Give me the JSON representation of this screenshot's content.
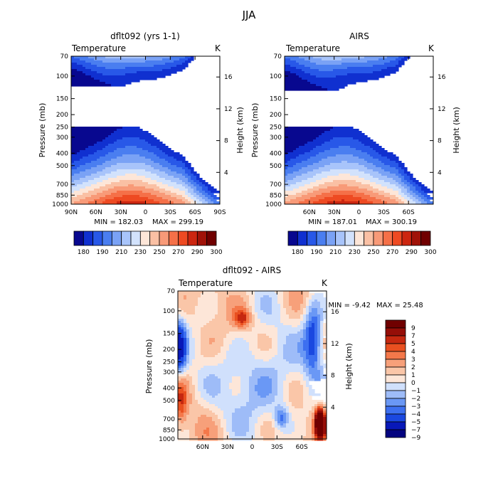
{
  "figure": {
    "title": "JJA",
    "variable": "Temperature",
    "units": "K",
    "ylabel_left": "Pressure (mb)",
    "ylabel_right": "Height (km)"
  },
  "colors": {
    "temperature_scale": [
      "#08088f",
      "#1030d0",
      "#2858e8",
      "#4a7ef0",
      "#7aa2f5",
      "#a8c4fa",
      "#d2e2fc",
      "#fde6d8",
      "#fac0a4",
      "#f89a78",
      "#f57048",
      "#ee4a22",
      "#cc2610",
      "#a01208",
      "#700000"
    ],
    "difference_scale": [
      "#040480",
      "#0818b8",
      "#1a48e0",
      "#3d70f0",
      "#6a98f5",
      "#9ebcf8",
      "#d0e0fc",
      "#fde6d8",
      "#fac6a8",
      "#f7a07a",
      "#f4784a",
      "#e95020",
      "#c62810",
      "#960e08",
      "#700000"
    ]
  },
  "chart_data": [
    {
      "type": "heatmap",
      "title": "dflt092 (yrs 1-1)",
      "xlabel": "",
      "x_ticks": [
        "90N",
        "60N",
        "30N",
        "0",
        "30S",
        "60S",
        "90S"
      ],
      "x_range": [
        90,
        -90
      ],
      "y_ticks": [
        "70",
        "100",
        "150",
        "200",
        "250",
        "300",
        "400",
        "500",
        "700",
        "850",
        "1000"
      ],
      "y2_ticks": [
        "16",
        "12",
        "8",
        "4"
      ],
      "ylim": [
        1000,
        70
      ],
      "min_label": "MIN = 182.03",
      "max_label": "MAX = 299.19",
      "levels": [
        180,
        190,
        200,
        210,
        220,
        230,
        240,
        250,
        260,
        270,
        280,
        290,
        300
      ],
      "level_labels": [
        "180",
        "190",
        "210",
        "230",
        "250",
        "270",
        "290",
        "300"
      ]
    },
    {
      "type": "heatmap",
      "title": "AIRS",
      "xlabel": "",
      "x_ticks": [
        "60N",
        "30N",
        "0",
        "30S",
        "60S"
      ],
      "x_range": [
        90,
        -90
      ],
      "y_ticks": [
        "70",
        "100",
        "150",
        "200",
        "250",
        "300",
        "400",
        "500",
        "700",
        "850",
        "1000"
      ],
      "y2_ticks": [
        "16",
        "12",
        "8",
        "4"
      ],
      "ylim": [
        1000,
        70
      ],
      "min_label": "MIN = 187.01",
      "max_label": "MAX = 300.19",
      "levels": [
        180,
        190,
        200,
        210,
        220,
        230,
        240,
        250,
        260,
        270,
        280,
        290,
        300
      ],
      "level_labels": [
        "180",
        "190",
        "210",
        "230",
        "250",
        "270",
        "290",
        "300"
      ]
    },
    {
      "type": "heatmap",
      "title": "dflt092 - AIRS",
      "xlabel": "",
      "x_ticks": [
        "60N",
        "30N",
        "0",
        "30S",
        "60S"
      ],
      "x_range": [
        90,
        -90
      ],
      "y_ticks": [
        "70",
        "100",
        "150",
        "200",
        "250",
        "300",
        "400",
        "500",
        "700",
        "850",
        "1000"
      ],
      "y2_ticks": [
        "16",
        "12",
        "8",
        "4"
      ],
      "ylim": [
        1000,
        70
      ],
      "min_label": "MIN =  -9.42",
      "max_label": "MAX =  25.48",
      "levels": [
        -9,
        -7,
        -5,
        -4,
        -3,
        -2,
        -1,
        0,
        1,
        2,
        3,
        4,
        5,
        7,
        9
      ],
      "level_labels": [
        "9",
        "7",
        "5",
        "4",
        "3",
        "2",
        "1",
        "0",
        "−1",
        "−2",
        "−3",
        "−4",
        "−5",
        "−7",
        "−9"
      ]
    }
  ]
}
